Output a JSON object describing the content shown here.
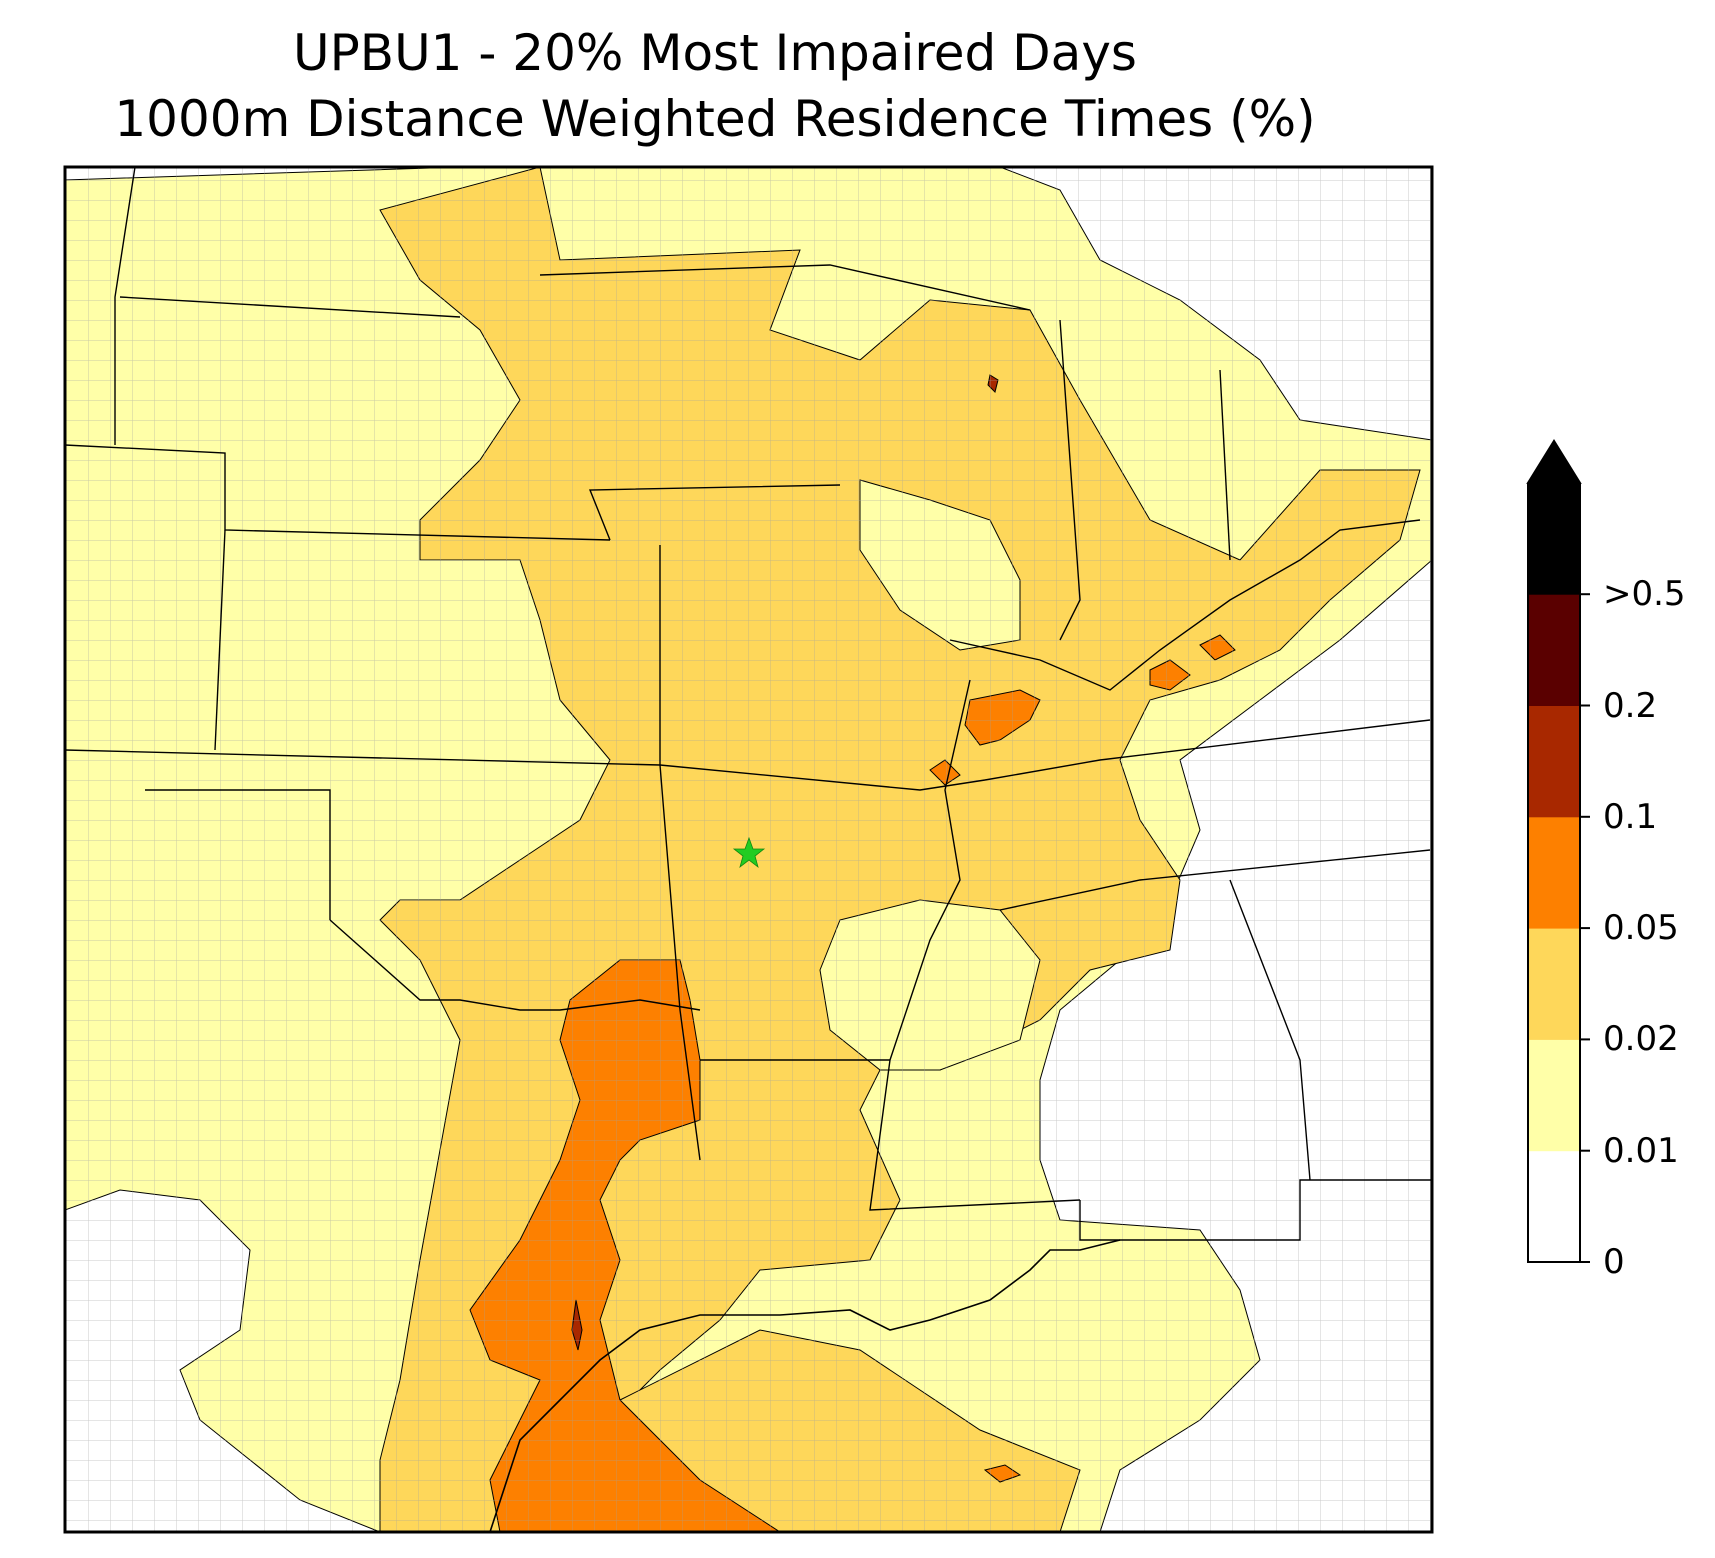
{
  "title": {
    "line1": "UPBU1 - 20% Most Impaired Days",
    "line2": "1000m Distance Weighted Residence Times (%)"
  },
  "site_marker": {
    "name": "UPBU1",
    "color": "#22cc22",
    "symbol": "star"
  },
  "colorbar": {
    "levels": [
      {
        "label": "0",
        "color": "#ffffff"
      },
      {
        "label": "0.01",
        "color": "#ffffa8"
      },
      {
        "label": "0.02",
        "color": "#fed75a"
      },
      {
        "label": "0.05",
        "color": "#fd8000"
      },
      {
        "label": "0.1",
        "color": "#a82800"
      },
      {
        "label": "0.2",
        "color": "#5a0000"
      },
      {
        "label": ">0.5",
        "color": "#000000"
      }
    ],
    "extend": "max"
  },
  "colors": {
    "county_lines": "#a0a0a0",
    "state_lines": "#000000",
    "contour_lines": "#000000"
  }
}
